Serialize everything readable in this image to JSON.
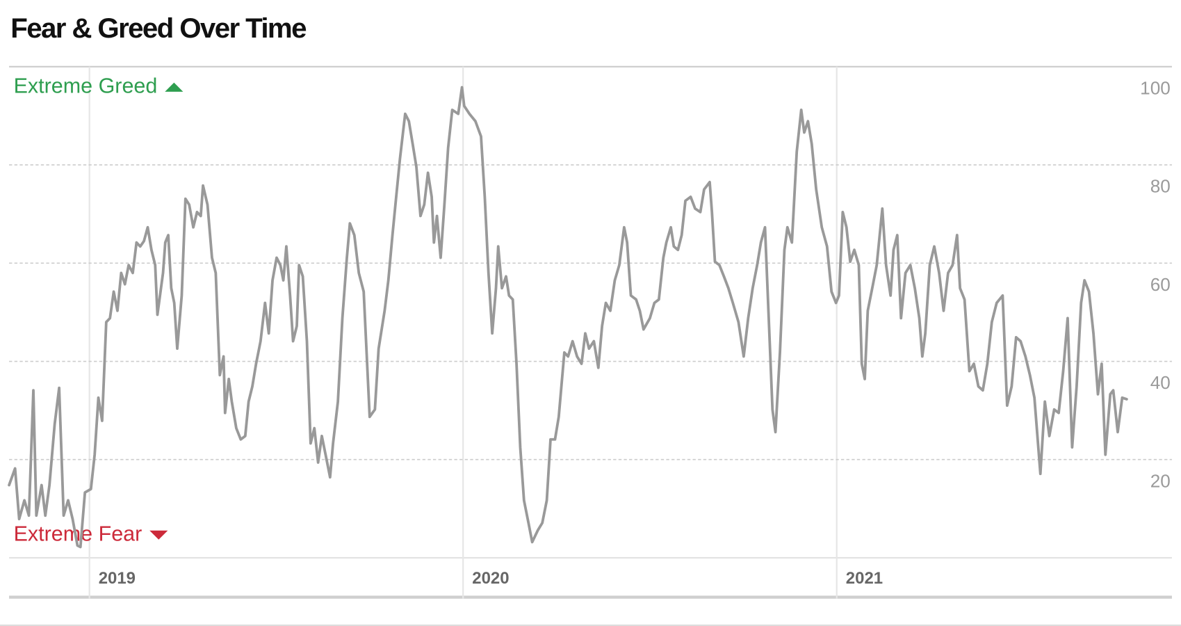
{
  "chart_data": {
    "type": "line",
    "title": "Fear & Greed Over Time",
    "annotations": [
      {
        "text": "Extreme Greed",
        "color": "#2e9e4f",
        "marker": "up"
      },
      {
        "text": "Extreme Fear",
        "color": "#cc2a3a",
        "marker": "down"
      }
    ],
    "color": "#999999",
    "x": [
      2018.785,
      2018.801,
      2018.812,
      2018.826,
      2018.838,
      2018.85,
      2018.858,
      2018.872,
      2018.882,
      2018.893,
      2018.907,
      2018.919,
      2018.931,
      2018.943,
      2018.955,
      2018.968,
      2018.976,
      2018.988,
      2019.004,
      2019.014,
      2019.024,
      2019.034,
      2019.045,
      2019.055,
      2019.065,
      2019.075,
      2019.085,
      2019.095,
      2019.105,
      2019.116,
      2019.126,
      2019.136,
      2019.146,
      2019.156,
      2019.166,
      2019.176,
      2019.182,
      2019.197,
      2019.203,
      2019.211,
      2019.219,
      2019.227,
      2019.235,
      2019.247,
      2019.257,
      2019.267,
      2019.278,
      2019.288,
      2019.298,
      2019.304,
      2019.316,
      2019.328,
      2019.338,
      2019.349,
      2019.359,
      2019.363,
      2019.373,
      2019.381,
      2019.393,
      2019.405,
      2019.417,
      2019.426,
      2019.436,
      2019.446,
      2019.458,
      2019.47,
      2019.48,
      2019.49,
      2019.501,
      2019.511,
      2019.519,
      2019.527,
      2019.537,
      2019.545,
      2019.555,
      2019.561,
      2019.571,
      2019.582,
      2019.592,
      2019.602,
      2019.612,
      2019.622,
      2019.632,
      2019.644,
      2019.652,
      2019.665,
      2019.677,
      2019.689,
      2019.697,
      2019.709,
      2019.721,
      2019.734,
      2019.75,
      2019.764,
      2019.774,
      2019.79,
      2019.8,
      2019.811,
      2019.821,
      2019.831,
      2019.845,
      2019.855,
      2019.865,
      2019.875,
      2019.886,
      2019.896,
      2019.906,
      2019.916,
      2019.922,
      2019.93,
      2019.94,
      2019.95,
      2019.96,
      2019.971,
      2019.987,
      2019.997,
      2020.003,
      2020.017,
      2020.033,
      2020.048,
      2020.058,
      2020.068,
      2020.078,
      2020.088,
      2020.094,
      2020.104,
      2020.115,
      2020.123,
      2020.133,
      2020.143,
      2020.153,
      2020.163,
      2020.175,
      2020.185,
      2020.2,
      2020.212,
      2020.224,
      2020.234,
      2020.246,
      2020.256,
      2020.271,
      2020.281,
      2020.293,
      2020.305,
      2020.317,
      2020.327,
      2020.337,
      2020.35,
      2020.362,
      2020.372,
      2020.382,
      2020.394,
      2020.406,
      2020.418,
      2020.431,
      2020.439,
      2020.449,
      2020.463,
      2020.473,
      2020.483,
      2020.5,
      2020.512,
      2020.524,
      2020.536,
      2020.544,
      2020.556,
      2020.564,
      2020.575,
      2020.585,
      2020.595,
      2020.609,
      2020.621,
      2020.635,
      2020.645,
      2020.66,
      2020.666,
      2020.674,
      2020.686,
      2020.698,
      2020.71,
      2020.722,
      2020.737,
      2020.751,
      2020.763,
      2020.775,
      2020.787,
      2020.797,
      2020.808,
      2020.818,
      2020.828,
      2020.836,
      2020.848,
      2020.86,
      2020.868,
      2020.88,
      2020.893,
      2020.905,
      2020.913,
      2020.923,
      2020.933,
      2020.945,
      2020.96,
      2020.974,
      2020.986,
      2020.998,
      2021.006,
      2021.016,
      2021.026,
      2021.036,
      2021.047,
      2021.059,
      2021.067,
      2021.075,
      2021.083,
      2021.095,
      2021.107,
      2021.122,
      2021.132,
      2021.144,
      2021.152,
      2021.162,
      2021.172,
      2021.184,
      2021.197,
      2021.209,
      2021.221,
      2021.229,
      2021.237,
      2021.249,
      2021.261,
      2021.274,
      2021.286,
      2021.298,
      2021.31,
      2021.322,
      2021.33,
      2021.342,
      2021.355,
      2021.367,
      2021.379,
      2021.391,
      2021.403,
      2021.415,
      2021.428,
      2021.444,
      2021.456,
      2021.468,
      2021.48,
      2021.492,
      2021.505,
      2021.517,
      2021.529,
      2021.545,
      2021.557,
      2021.569,
      2021.582,
      2021.594,
      2021.606,
      2021.618,
      2021.63,
      2021.642,
      2021.654,
      2021.663,
      2021.675,
      2021.687,
      2021.699,
      2021.709,
      2021.719,
      2021.732,
      2021.74,
      2021.752,
      2021.764,
      2021.776
    ],
    "values": [
      14.8,
      18.2,
      7.9,
      11.7,
      8.6,
      34.1,
      8.6,
      14.8,
      8.6,
      14.8,
      27.2,
      34.6,
      8.6,
      11.7,
      7.9,
      2.5,
      2.2,
      13.3,
      14.0,
      21.0,
      32.6,
      27.9,
      48.0,
      48.8,
      54.2,
      50.3,
      58.0,
      55.7,
      59.6,
      58.0,
      64.2,
      63.4,
      64.5,
      67.3,
      62.7,
      59.6,
      49.5,
      58.0,
      64.2,
      65.7,
      54.9,
      51.9,
      42.6,
      53.4,
      73.1,
      71.9,
      67.3,
      70.4,
      69.6,
      75.8,
      71.9,
      61.1,
      58.0,
      37.2,
      41.0,
      29.5,
      36.4,
      31.8,
      26.4,
      24.1,
      24.8,
      31.8,
      34.9,
      39.5,
      44.1,
      51.9,
      45.7,
      56.5,
      61.1,
      59.6,
      56.5,
      63.4,
      53.4,
      44.1,
      47.2,
      59.6,
      57.3,
      44.1,
      23.3,
      26.4,
      19.4,
      24.8,
      21.0,
      16.4,
      23.3,
      31.8,
      48.8,
      61.1,
      68.1,
      65.7,
      58.0,
      54.2,
      28.7,
      30.2,
      42.6,
      50.3,
      56.5,
      65.7,
      73.5,
      81.2,
      90.4,
      88.9,
      84.3,
      79.6,
      69.6,
      71.9,
      78.4,
      73.5,
      64.2,
      69.6,
      61.1,
      71.9,
      83.5,
      91.2,
      90.4,
      95.8,
      92.0,
      90.4,
      88.9,
      85.8,
      73.5,
      58.0,
      45.7,
      54.9,
      63.4,
      54.9,
      57.3,
      53.4,
      52.6,
      39.5,
      22.5,
      11.7,
      7.1,
      3.2,
      5.6,
      7.1,
      11.7,
      24.1,
      24.1,
      28.7,
      41.8,
      41.0,
      44.1,
      41.0,
      39.5,
      45.7,
      42.6,
      44.1,
      38.7,
      47.2,
      51.9,
      50.3,
      56.5,
      59.6,
      67.3,
      64.2,
      53.4,
      52.6,
      50.3,
      46.5,
      48.8,
      51.9,
      52.6,
      61.1,
      64.2,
      67.3,
      63.4,
      62.7,
      65.7,
      72.7,
      73.5,
      71.1,
      70.4,
      75.0,
      76.5,
      70.4,
      60.3,
      59.6,
      57.3,
      54.9,
      51.9,
      48.0,
      41.0,
      48.8,
      54.9,
      59.6,
      64.2,
      67.3,
      48.8,
      30.2,
      25.6,
      41.8,
      62.7,
      67.3,
      64.2,
      82.7,
      91.2,
      86.6,
      88.9,
      84.3,
      75.0,
      67.3,
      63.4,
      54.2,
      51.9,
      53.4,
      70.4,
      67.3,
      60.3,
      62.7,
      59.6,
      39.5,
      36.4,
      50.3,
      54.9,
      59.6,
      71.1,
      59.6,
      53.4,
      62.7,
      65.7,
      48.8,
      58.0,
      59.6,
      54.9,
      48.8,
      41.0,
      45.7,
      59.6,
      63.4,
      58.0,
      50.3,
      58.0,
      59.6,
      65.7,
      54.9,
      52.6,
      38.0,
      39.5,
      34.9,
      34.1,
      39.5,
      48.0,
      51.9,
      53.4,
      31.0,
      34.9,
      44.9,
      44.1,
      41.0,
      37.2,
      32.6,
      17.1,
      31.8,
      24.8,
      30.2,
      29.5,
      38.0,
      48.8,
      22.5,
      34.9,
      51.9,
      56.5,
      54.2,
      45.7,
      33.3,
      39.5,
      21.0,
      33.3,
      34.1,
      25.6,
      32.6,
      32.3
    ],
    "xlim": [
      2018.785,
      2021.897
    ],
    "xticks": [
      2019,
      2020,
      2021
    ],
    "ylim": [
      0,
      100
    ],
    "yticks": [
      20,
      40,
      60,
      80,
      100
    ],
    "grid": true
  }
}
